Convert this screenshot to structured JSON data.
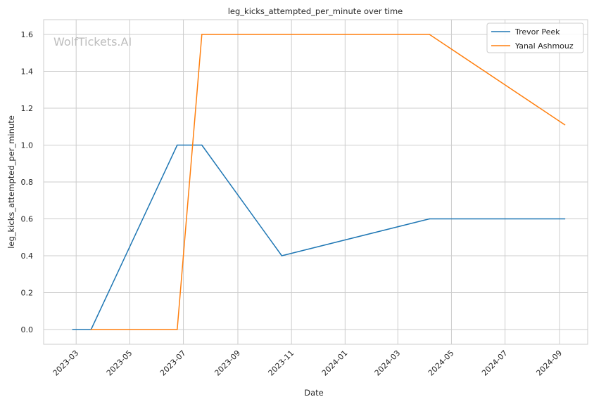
{
  "chart_data": {
    "type": "line",
    "title": "leg_kicks_attempted_per_minute over time",
    "xlabel": "Date",
    "ylabel": "leg_kicks_attempted_per_minute",
    "watermark": "WolfTickets.AI",
    "xlim": [
      "2023-01-23",
      "2024-10-03"
    ],
    "ylim": [
      -0.08,
      1.68
    ],
    "x_ticks": [
      "2023-03",
      "2023-05",
      "2023-07",
      "2023-09",
      "2023-11",
      "2024-01",
      "2024-03",
      "2024-05",
      "2024-07",
      "2024-09"
    ],
    "y_ticks": [
      0.0,
      0.2,
      0.4,
      0.6,
      0.8,
      1.0,
      1.2,
      1.4,
      1.6
    ],
    "y_tick_labels": [
      "0.0",
      "0.2",
      "0.4",
      "0.6",
      "0.8",
      "1.0",
      "1.2",
      "1.4",
      "1.6"
    ],
    "grid": true,
    "legend_position": "top-right",
    "series": [
      {
        "name": "Trevor Peek",
        "color": "#1f77b4",
        "points": [
          {
            "x": "2023-02-25",
            "y": 0.0
          },
          {
            "x": "2023-03-18",
            "y": 0.0
          },
          {
            "x": "2023-06-24",
            "y": 1.0
          },
          {
            "x": "2023-07-22",
            "y": 1.0
          },
          {
            "x": "2023-10-21",
            "y": 0.4
          },
          {
            "x": "2024-04-06",
            "y": 0.6
          },
          {
            "x": "2024-09-07",
            "y": 0.6
          }
        ]
      },
      {
        "name": "Yanal Ashmouz",
        "color": "#ff7f0e",
        "points": [
          {
            "x": "2023-03-18",
            "y": 0.0
          },
          {
            "x": "2023-06-24",
            "y": 0.0
          },
          {
            "x": "2023-07-22",
            "y": 1.6
          },
          {
            "x": "2024-04-06",
            "y": 1.6
          },
          {
            "x": "2024-09-07",
            "y": 1.11
          }
        ]
      }
    ]
  }
}
